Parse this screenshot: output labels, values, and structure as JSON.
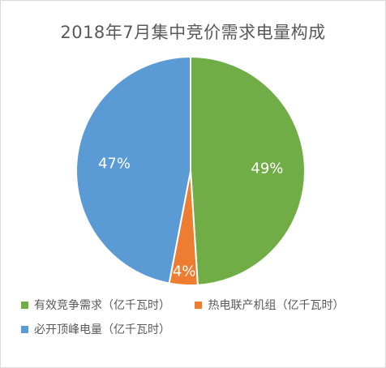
{
  "chart_data": {
    "type": "pie",
    "title": "2018年7月集中竞价需求电量构成",
    "slices": [
      {
        "name": "有效竞争需求（亿千瓦时）",
        "value": 49,
        "label": "49%",
        "color": "#70AD47"
      },
      {
        "name": "热电联产机组（亿千瓦时）",
        "value": 4,
        "label": "4%",
        "color": "#ED7D31"
      },
      {
        "name": "必开顶峰电量（亿千瓦时）",
        "value": 47,
        "label": "47%",
        "color": "#5B9BD5"
      }
    ],
    "start_angle": "12 o'clock, clockwise",
    "legend_position": "bottom"
  }
}
